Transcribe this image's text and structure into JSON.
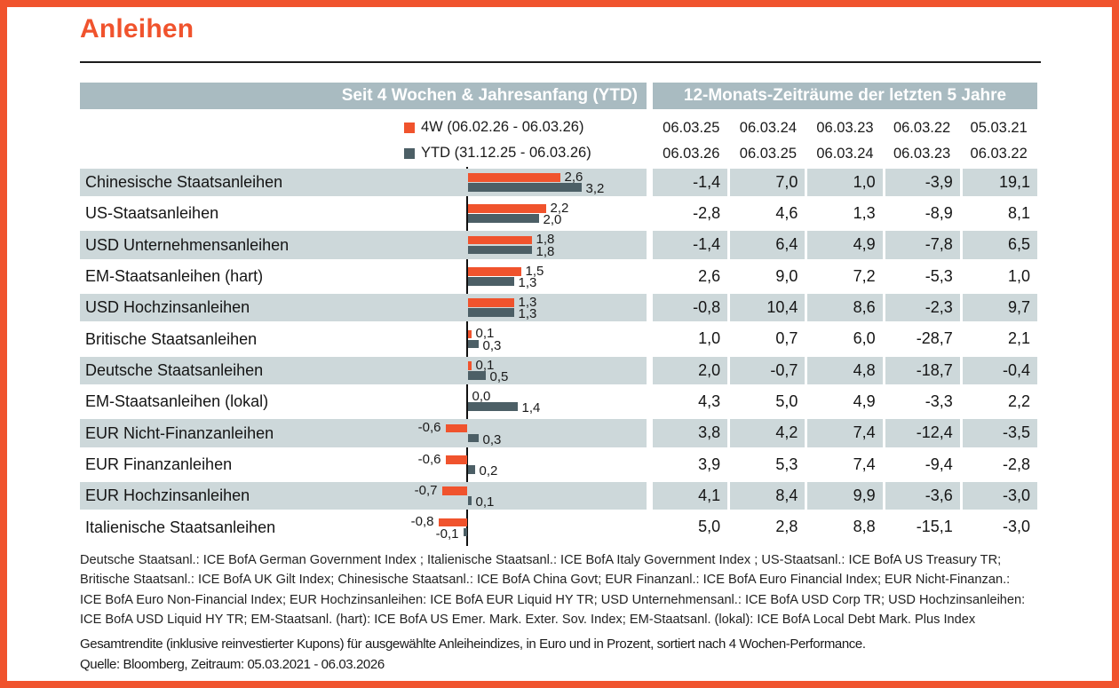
{
  "title": "Anleihen",
  "colors": {
    "accent_orange": "#F0532D",
    "slate_gray": "#4C5F66",
    "header_band": "#A9BBC1",
    "row_stripe": "#CDD8DA",
    "text": "#1A1A1A"
  },
  "left_header": "Seit 4 Wochen & Jahresanfang (YTD)",
  "right_header": "12-Monats-Zeiträume der letzten 5 Jahre",
  "legend": [
    {
      "label": "4W (06.02.26 - 06.03.26)",
      "series": "4W"
    },
    {
      "label": "YTD (31.12.25 - 06.03.26)",
      "series": "YTD"
    }
  ],
  "dates_top": [
    "06.03.25",
    "06.03.24",
    "06.03.23",
    "06.03.22",
    "05.03.21"
  ],
  "dates_bottom": [
    "06.03.26",
    "06.03.25",
    "06.03.24",
    "06.03.23",
    "06.03.22"
  ],
  "rows": [
    {
      "label": "Chinesische Staatsanleihen",
      "w4": 2.6,
      "w4_label": "2,6",
      "ytd": 3.2,
      "ytd_label": "3,2",
      "values": [
        "-1,4",
        "7,0",
        "1,0",
        "-3,9",
        "19,1"
      ]
    },
    {
      "label": "US-Staatsanleihen",
      "w4": 2.2,
      "w4_label": "2,2",
      "ytd": 2.0,
      "ytd_label": "2,0",
      "values": [
        "-2,8",
        "4,6",
        "1,3",
        "-8,9",
        "8,1"
      ]
    },
    {
      "label": "USD Unternehmensanleihen",
      "w4": 1.8,
      "w4_label": "1,8",
      "ytd": 1.8,
      "ytd_label": "1,8",
      "values": [
        "-1,4",
        "6,4",
        "4,9",
        "-7,8",
        "6,5"
      ]
    },
    {
      "label": "EM-Staatsanleihen (hart)",
      "w4": 1.5,
      "w4_label": "1,5",
      "ytd": 1.3,
      "ytd_label": "1,3",
      "values": [
        "2,6",
        "9,0",
        "7,2",
        "-5,3",
        "1,0"
      ]
    },
    {
      "label": "USD Hochzinsanleihen",
      "w4": 1.3,
      "w4_label": "1,3",
      "ytd": 1.3,
      "ytd_label": "1,3",
      "values": [
        "-0,8",
        "10,4",
        "8,6",
        "-2,3",
        "9,7"
      ]
    },
    {
      "label": "Britische Staatsanleihen",
      "w4": 0.1,
      "w4_label": "0,1",
      "ytd": 0.3,
      "ytd_label": "0,3",
      "values": [
        "1,0",
        "0,7",
        "6,0",
        "-28,7",
        "2,1"
      ]
    },
    {
      "label": "Deutsche Staatsanleihen",
      "w4": 0.1,
      "w4_label": "0,1",
      "ytd": 0.5,
      "ytd_label": "0,5",
      "values": [
        "2,0",
        "-0,7",
        "4,8",
        "-18,7",
        "-0,4"
      ]
    },
    {
      "label": "EM-Staatsanleihen (lokal)",
      "w4": 0.0,
      "w4_label": "0,0",
      "ytd": 1.4,
      "ytd_label": "1,4",
      "values": [
        "4,3",
        "5,0",
        "4,9",
        "-3,3",
        "2,2"
      ]
    },
    {
      "label": "EUR Nicht-Finanzanleihen",
      "w4": -0.6,
      "w4_label": "-0,6",
      "ytd": 0.3,
      "ytd_label": "0,3",
      "values": [
        "3,8",
        "4,2",
        "7,4",
        "-12,4",
        "-3,5"
      ]
    },
    {
      "label": "EUR Finanzanleihen",
      "w4": -0.6,
      "w4_label": "-0,6",
      "ytd": 0.2,
      "ytd_label": "0,2",
      "values": [
        "3,9",
        "5,3",
        "7,4",
        "-9,4",
        "-2,8"
      ]
    },
    {
      "label": "EUR Hochzinsanleihen",
      "w4": -0.7,
      "w4_label": "-0,7",
      "ytd": 0.1,
      "ytd_label": "0,1",
      "values": [
        "4,1",
        "8,4",
        "9,9",
        "-3,6",
        "-3,0"
      ]
    },
    {
      "label": "Italienische Staatsanleihen",
      "w4": -0.8,
      "w4_label": "-0,8",
      "ytd": -0.1,
      "ytd_label": "-0,1",
      "values": [
        "5,0",
        "2,8",
        "8,8",
        "-15,1",
        "-3,0"
      ]
    }
  ],
  "footnotes": [
    "Deutsche Staatsanl.: ICE BofA German Government Index ; Italienische Staatsanl.: ICE BofA Italy Government Index ; US-Staatsanl.: ICE BofA US Treasury TR;",
    "Britische Staatsanl.: ICE BofA UK Gilt Index; Chinesische Staatsanl.: ICE BofA China Govt; EUR Finanzanl.: ICE BofA Euro Financial Index; EUR Nicht-Finanzan.:",
    "ICE BofA Euro Non-Financial Index; EUR Hochzinsanleihen: ICE BofA EUR Liquid HY TR; USD Unternehmensanl.: ICE BofA USD Corp TR; USD Hochzinsanleihen:",
    "ICE BofA USD Liquid HY TR; EM-Staatsanl. (hart): ICE BofA US Emer. Mark. Exter. Sov. Index; EM-Staatsanl. (lokal):  ICE BofA Local Debt Mark. Plus Index"
  ],
  "description": "Gesamtrendite (inklusive reinvestierter Kupons) für ausgewählte Anleiheindizes, in Euro und in Prozent, sortiert nach 4 Wochen-Performance.",
  "source": "Quelle: Bloomberg, Zeitraum: 05.03.2021 - 06.03.2026",
  "chart_data": {
    "type": "bar",
    "orientation": "horizontal",
    "title": "Anleihen",
    "categories": [
      "Chinesische Staatsanleihen",
      "US-Staatsanleihen",
      "USD Unternehmensanleihen",
      "EM-Staatsanleihen (hart)",
      "USD Hochzinsanleihen",
      "Britische Staatsanleihen",
      "Deutsche Staatsanleihen",
      "EM-Staatsanleihen (lokal)",
      "EUR Nicht-Finanzanleihen",
      "EUR Finanzanleihen",
      "EUR Hochzinsanleihen",
      "Italienische Staatsanleihen"
    ],
    "series": [
      {
        "name": "4W (06.02.26 - 06.03.26)",
        "color": "#F0532D",
        "values": [
          2.6,
          2.2,
          1.8,
          1.5,
          1.3,
          0.1,
          0.1,
          0.0,
          -0.6,
          -0.6,
          -0.7,
          -0.8
        ]
      },
      {
        "name": "YTD (31.12.25 - 06.03.26)",
        "color": "#4C5F66",
        "values": [
          3.2,
          2.0,
          1.8,
          1.3,
          1.3,
          0.3,
          0.5,
          1.4,
          0.3,
          0.2,
          0.1,
          -0.1
        ]
      }
    ],
    "xlim": [
      -0.9,
      3.4
    ],
    "unit": "percent",
    "legend_position": "top",
    "grid": false,
    "table": {
      "title": "12-Monats-Zeiträume der letzten 5 Jahre",
      "column_periods": [
        {
          "from": "06.03.25",
          "to": "06.03.26"
        },
        {
          "from": "06.03.24",
          "to": "06.03.25"
        },
        {
          "from": "06.03.23",
          "to": "06.03.24"
        },
        {
          "from": "06.03.22",
          "to": "06.03.23"
        },
        {
          "from": "05.03.21",
          "to": "06.03.22"
        }
      ],
      "rows": [
        {
          "category": "Chinesische Staatsanleihen",
          "values": [
            -1.4,
            7.0,
            1.0,
            -3.9,
            19.1
          ]
        },
        {
          "category": "US-Staatsanleihen",
          "values": [
            -2.8,
            4.6,
            1.3,
            -8.9,
            8.1
          ]
        },
        {
          "category": "USD Unternehmensanleihen",
          "values": [
            -1.4,
            6.4,
            4.9,
            -7.8,
            6.5
          ]
        },
        {
          "category": "EM-Staatsanleihen (hart)",
          "values": [
            2.6,
            9.0,
            7.2,
            -5.3,
            1.0
          ]
        },
        {
          "category": "USD Hochzinsanleihen",
          "values": [
            -0.8,
            10.4,
            8.6,
            -2.3,
            9.7
          ]
        },
        {
          "category": "Britische Staatsanleihen",
          "values": [
            1.0,
            0.7,
            6.0,
            -28.7,
            2.1
          ]
        },
        {
          "category": "Deutsche Staatsanleihen",
          "values": [
            2.0,
            -0.7,
            4.8,
            -18.7,
            -0.4
          ]
        },
        {
          "category": "EM-Staatsanleihen (lokal)",
          "values": [
            4.3,
            5.0,
            4.9,
            -3.3,
            2.2
          ]
        },
        {
          "category": "EUR Nicht-Finanzanleihen",
          "values": [
            3.8,
            4.2,
            7.4,
            -12.4,
            -3.5
          ]
        },
        {
          "category": "EUR Finanzanleihen",
          "values": [
            3.9,
            5.3,
            7.4,
            -9.4,
            -2.8
          ]
        },
        {
          "category": "EUR Hochzinsanleihen",
          "values": [
            4.1,
            8.4,
            9.9,
            -3.6,
            -3.0
          ]
        },
        {
          "category": "Italienische Staatsanleihen",
          "values": [
            5.0,
            2.8,
            8.8,
            -15.1,
            -3.0
          ]
        }
      ]
    }
  }
}
